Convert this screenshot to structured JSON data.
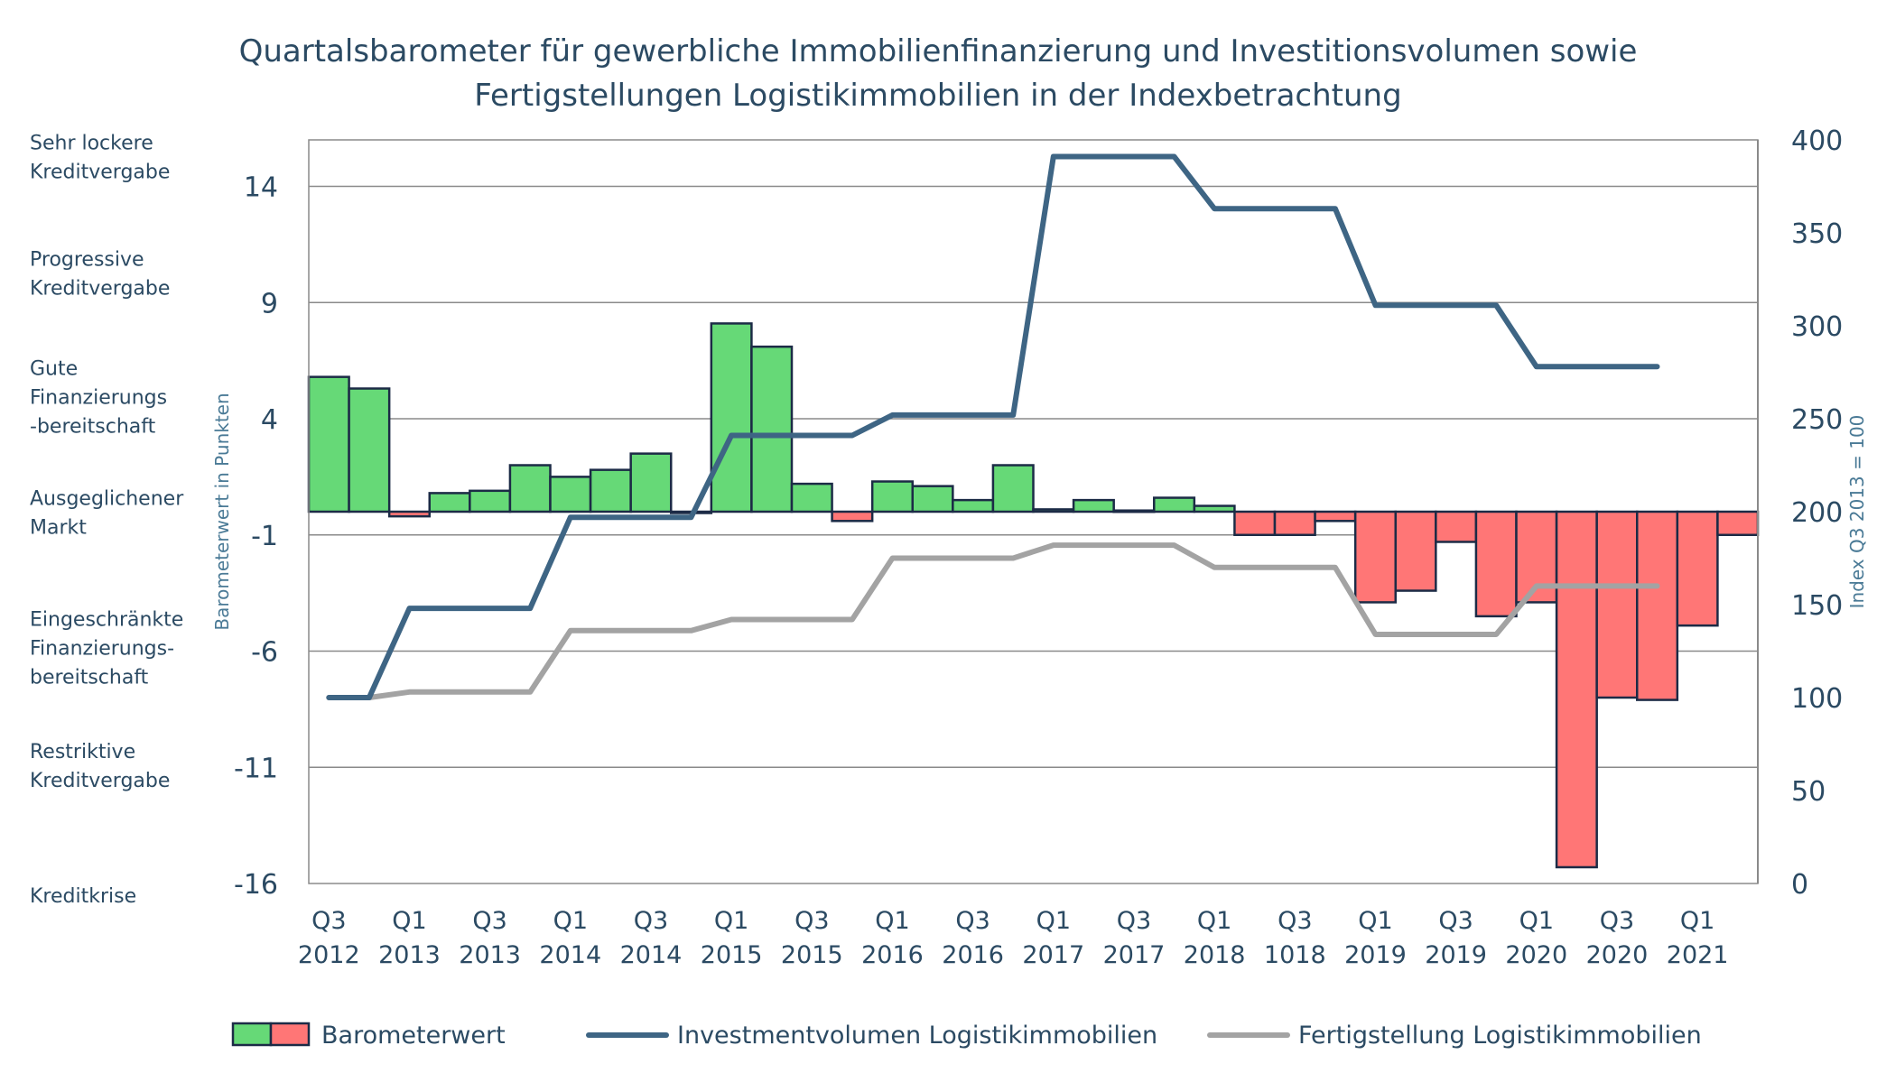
{
  "chart_data": {
    "type": "bar",
    "title": [
      "Quartalsbarometer für gewerbliche Immobilienfinanzierung und Investitionsvolumen sowie",
      "Fertigstellungen Logistikimmobilien in der Indexbetrachtung"
    ],
    "ylabel_left": "Barometerwert in Punkten",
    "ylabel_right": "Index  Q3 2013 = 100",
    "ylim_left": [
      -16,
      16
    ],
    "yticks_left": [
      14,
      9,
      4,
      -1,
      -6,
      -11,
      -16
    ],
    "ylim_right": [
      0,
      400
    ],
    "yticks_right": [
      400,
      350,
      300,
      250,
      200,
      150,
      100,
      50,
      0
    ],
    "grid": true,
    "x_tick_labels": [
      [
        "Q3",
        "2012"
      ],
      [
        "Q1",
        "2013"
      ],
      [
        "Q3",
        "2013"
      ],
      [
        "Q1",
        "2014"
      ],
      [
        "Q3",
        "2014"
      ],
      [
        "Q1",
        "2015"
      ],
      [
        "Q3",
        "2015"
      ],
      [
        "Q1",
        "2016"
      ],
      [
        "Q3",
        "2016"
      ],
      [
        "Q1",
        "2017"
      ],
      [
        "Q3",
        "2017"
      ],
      [
        "Q1",
        "2018"
      ],
      [
        "Q3",
        "1018"
      ],
      [
        "Q1",
        "2019"
      ],
      [
        "Q3",
        "2019"
      ],
      [
        "Q1",
        "2020"
      ],
      [
        "Q3",
        "2020"
      ],
      [
        "Q1",
        "2021"
      ]
    ],
    "band_labels": [
      {
        "lines": [
          "Sehr lockere",
          "Kreditvergabe"
        ],
        "value": 15.9
      },
      {
        "lines": [
          "Progressive",
          "Kreditvergabe"
        ],
        "value": 10.9
      },
      {
        "lines": [
          "Gute",
          "Finanzierungs",
          "-bereitschaft"
        ],
        "value": 6.2
      },
      {
        "lines": [
          "Ausgeglichener",
          "Markt"
        ],
        "value": 0.6
      },
      {
        "lines": [
          "Eingeschränkte",
          "Finanzierungs-",
          "bereitschaft"
        ],
        "value": -4.6
      },
      {
        "lines": [
          "Restriktive",
          "Kreditvergabe"
        ],
        "value": -10.3
      },
      {
        "lines": [
          "Kreditkrise"
        ],
        "value": -16.5
      }
    ],
    "series": [
      {
        "name": "Barometerwert",
        "type": "bar",
        "axis": "left",
        "values": [
          5.8,
          5.3,
          -0.2,
          0.8,
          0.9,
          2.0,
          1.5,
          1.8,
          2.5,
          0.0,
          8.1,
          7.1,
          1.2,
          -0.4,
          1.3,
          1.1,
          0.5,
          2.0,
          0.1,
          0.5,
          0.05,
          0.6,
          0.25,
          -1.0,
          -1.0,
          -0.4,
          -3.9,
          -3.4,
          -1.3,
          -4.5,
          -3.9,
          -15.3,
          -8.0,
          -8.1,
          -4.9,
          -1.0
        ],
        "positive_color": "#66d977",
        "negative_color": "#ff7676",
        "edge_color": "#1c2b46"
      },
      {
        "name": "Investmentvolumen Logistikimmobilien",
        "type": "line",
        "axis": "right",
        "color": "#3e6584",
        "points": [
          [
            0.5,
            100
          ],
          [
            1.5,
            100
          ],
          [
            2.5,
            148
          ],
          [
            5.5,
            148
          ],
          [
            6.5,
            197
          ],
          [
            9.5,
            197
          ],
          [
            10.5,
            241
          ],
          [
            13.5,
            241
          ],
          [
            14.5,
            252
          ],
          [
            17.5,
            252
          ],
          [
            18.5,
            391
          ],
          [
            21.5,
            391
          ],
          [
            22.5,
            363
          ],
          [
            25.5,
            363
          ],
          [
            26.5,
            311
          ],
          [
            29.5,
            311
          ],
          [
            30.5,
            278
          ],
          [
            33.5,
            278
          ]
        ]
      },
      {
        "name": "Fertigstellung Logistikimmobilien",
        "type": "line",
        "axis": "right",
        "color": "#a3a3a3",
        "points": [
          [
            0.5,
            100
          ],
          [
            1.5,
            100
          ],
          [
            2.5,
            103
          ],
          [
            5.5,
            103
          ],
          [
            6.5,
            136
          ],
          [
            9.5,
            136
          ],
          [
            10.5,
            142
          ],
          [
            13.5,
            142
          ],
          [
            14.5,
            175
          ],
          [
            17.5,
            175
          ],
          [
            18.5,
            182
          ],
          [
            21.5,
            182
          ],
          [
            22.5,
            170
          ],
          [
            25.5,
            170
          ],
          [
            26.5,
            134
          ],
          [
            29.5,
            134
          ],
          [
            30.5,
            160
          ],
          [
            33.5,
            160
          ]
        ]
      }
    ],
    "legend_position": "bottom"
  }
}
